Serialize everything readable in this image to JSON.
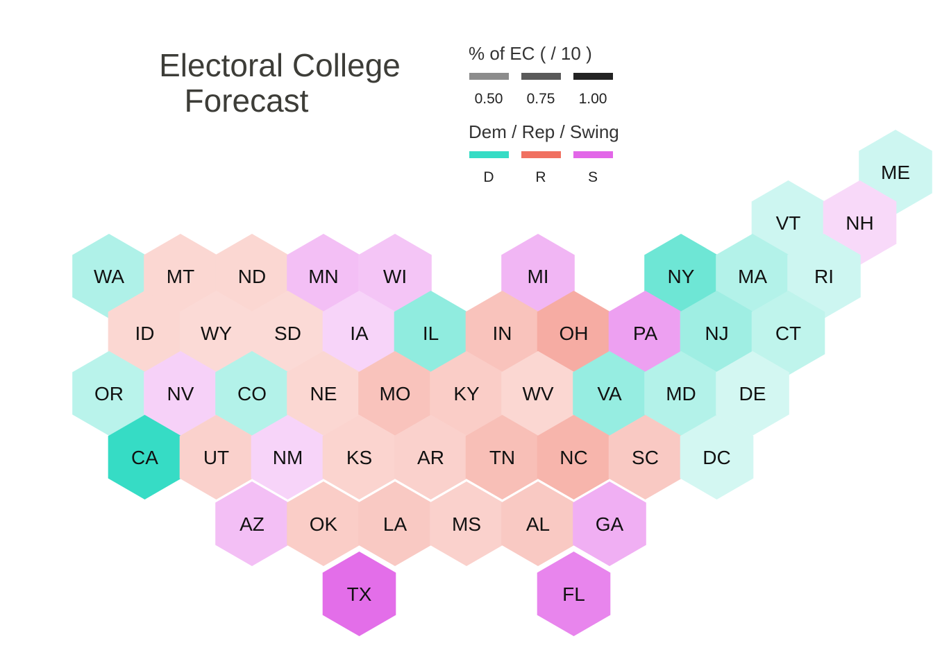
{
  "title": {
    "line1": "Electoral College",
    "line2": "Forecast"
  },
  "legend_size": {
    "title": "% of EC ( / 10 )",
    "items": [
      {
        "label": "0.50",
        "color": "#8c8c8c"
      },
      {
        "label": "0.75",
        "color": "#5a5a5a"
      },
      {
        "label": "1.00",
        "color": "#232323"
      }
    ]
  },
  "legend_party": {
    "title": "Dem / Rep / Swing",
    "items": [
      {
        "label": "D",
        "color": "#36dcc5"
      },
      {
        "label": "R",
        "color": "#f07060"
      },
      {
        "label": "S",
        "color": "#e266e8"
      }
    ]
  },
  "chart_data": {
    "type": "heatmap",
    "title": "Electoral College Forecast",
    "party_colors": {
      "D": "#36dcc5",
      "R": "#f07060",
      "S": "#e266e8"
    },
    "states": [
      {
        "abbr": "ME",
        "party": "D",
        "intensity": 0.25,
        "col": 11,
        "row": 0
      },
      {
        "abbr": "VT",
        "party": "D",
        "intensity": 0.25,
        "col": 9.5,
        "row": 1
      },
      {
        "abbr": "NH",
        "party": "S",
        "intensity": 0.25,
        "col": 10.5,
        "row": 1
      },
      {
        "abbr": "WA",
        "party": "D",
        "intensity": 0.4,
        "col": 0,
        "row": 2
      },
      {
        "abbr": "MT",
        "party": "R",
        "intensity": 0.28,
        "col": 1,
        "row": 2
      },
      {
        "abbr": "ND",
        "party": "R",
        "intensity": 0.28,
        "col": 2,
        "row": 2
      },
      {
        "abbr": "MN",
        "party": "S",
        "intensity": 0.42,
        "col": 3,
        "row": 2
      },
      {
        "abbr": "WI",
        "party": "S",
        "intensity": 0.38,
        "col": 4,
        "row": 2
      },
      {
        "abbr": "MI",
        "party": "S",
        "intensity": 0.48,
        "col": 6,
        "row": 2
      },
      {
        "abbr": "NY",
        "party": "D",
        "intensity": 0.72,
        "col": 8,
        "row": 2
      },
      {
        "abbr": "MA",
        "party": "D",
        "intensity": 0.38,
        "col": 9,
        "row": 2
      },
      {
        "abbr": "RI",
        "party": "D",
        "intensity": 0.25,
        "col": 10,
        "row": 2
      },
      {
        "abbr": "ID",
        "party": "R",
        "intensity": 0.28,
        "col": 0.5,
        "row": 3
      },
      {
        "abbr": "WY",
        "party": "R",
        "intensity": 0.26,
        "col": 1.5,
        "row": 3
      },
      {
        "abbr": "SD",
        "party": "R",
        "intensity": 0.26,
        "col": 2.5,
        "row": 3
      },
      {
        "abbr": "IA",
        "party": "S",
        "intensity": 0.28,
        "col": 3.5,
        "row": 3
      },
      {
        "abbr": "IL",
        "party": "D",
        "intensity": 0.55,
        "col": 4.5,
        "row": 3
      },
      {
        "abbr": "IN",
        "party": "R",
        "intensity": 0.42,
        "col": 5.5,
        "row": 3
      },
      {
        "abbr": "OH",
        "party": "R",
        "intensity": 0.58,
        "col": 6.5,
        "row": 3
      },
      {
        "abbr": "PA",
        "party": "S",
        "intensity": 0.62,
        "col": 7.5,
        "row": 3
      },
      {
        "abbr": "NJ",
        "party": "D",
        "intensity": 0.48,
        "col": 8.5,
        "row": 3
      },
      {
        "abbr": "CT",
        "party": "D",
        "intensity": 0.32,
        "col": 9.5,
        "row": 3
      },
      {
        "abbr": "OR",
        "party": "D",
        "intensity": 0.35,
        "col": 0,
        "row": 4
      },
      {
        "abbr": "NV",
        "party": "S",
        "intensity": 0.3,
        "col": 1,
        "row": 4
      },
      {
        "abbr": "CO",
        "party": "D",
        "intensity": 0.38,
        "col": 2,
        "row": 4
      },
      {
        "abbr": "NE",
        "party": "R",
        "intensity": 0.28,
        "col": 3,
        "row": 4
      },
      {
        "abbr": "MO",
        "party": "R",
        "intensity": 0.42,
        "col": 4,
        "row": 4
      },
      {
        "abbr": "KY",
        "party": "R",
        "intensity": 0.35,
        "col": 5,
        "row": 4
      },
      {
        "abbr": "WV",
        "party": "R",
        "intensity": 0.28,
        "col": 6,
        "row": 4
      },
      {
        "abbr": "VA",
        "party": "D",
        "intensity": 0.52,
        "col": 7,
        "row": 4
      },
      {
        "abbr": "MD",
        "party": "D",
        "intensity": 0.38,
        "col": 8,
        "row": 4
      },
      {
        "abbr": "DE",
        "party": "D",
        "intensity": 0.22,
        "col": 9,
        "row": 4
      },
      {
        "abbr": "CA",
        "party": "D",
        "intensity": 1.0,
        "col": 0.5,
        "row": 5
      },
      {
        "abbr": "UT",
        "party": "R",
        "intensity": 0.32,
        "col": 1.5,
        "row": 5
      },
      {
        "abbr": "NM",
        "party": "S",
        "intensity": 0.28,
        "col": 2.5,
        "row": 5
      },
      {
        "abbr": "KS",
        "party": "R",
        "intensity": 0.3,
        "col": 3.5,
        "row": 5
      },
      {
        "abbr": "AR",
        "party": "R",
        "intensity": 0.32,
        "col": 4.5,
        "row": 5
      },
      {
        "abbr": "TN",
        "party": "R",
        "intensity": 0.45,
        "col": 5.5,
        "row": 5
      },
      {
        "abbr": "NC",
        "party": "R",
        "intensity": 0.52,
        "col": 6.5,
        "row": 5
      },
      {
        "abbr": "SC",
        "party": "R",
        "intensity": 0.38,
        "col": 7.5,
        "row": 5
      },
      {
        "abbr": "DC",
        "party": "D",
        "intensity": 0.22,
        "col": 8.5,
        "row": 5
      },
      {
        "abbr": "AZ",
        "party": "S",
        "intensity": 0.42,
        "col": 2,
        "row": 6
      },
      {
        "abbr": "OK",
        "party": "R",
        "intensity": 0.35,
        "col": 3,
        "row": 6
      },
      {
        "abbr": "LA",
        "party": "R",
        "intensity": 0.38,
        "col": 4,
        "row": 6
      },
      {
        "abbr": "MS",
        "party": "R",
        "intensity": 0.32,
        "col": 5,
        "row": 6
      },
      {
        "abbr": "AL",
        "party": "R",
        "intensity": 0.38,
        "col": 6,
        "row": 6
      },
      {
        "abbr": "GA",
        "party": "S",
        "intensity": 0.52,
        "col": 7,
        "row": 6
      },
      {
        "abbr": "TX",
        "party": "S",
        "intensity": 0.95,
        "col": 3.5,
        "row": 7
      },
      {
        "abbr": "FL",
        "party": "S",
        "intensity": 0.8,
        "col": 6.5,
        "row": 7
      }
    ]
  }
}
